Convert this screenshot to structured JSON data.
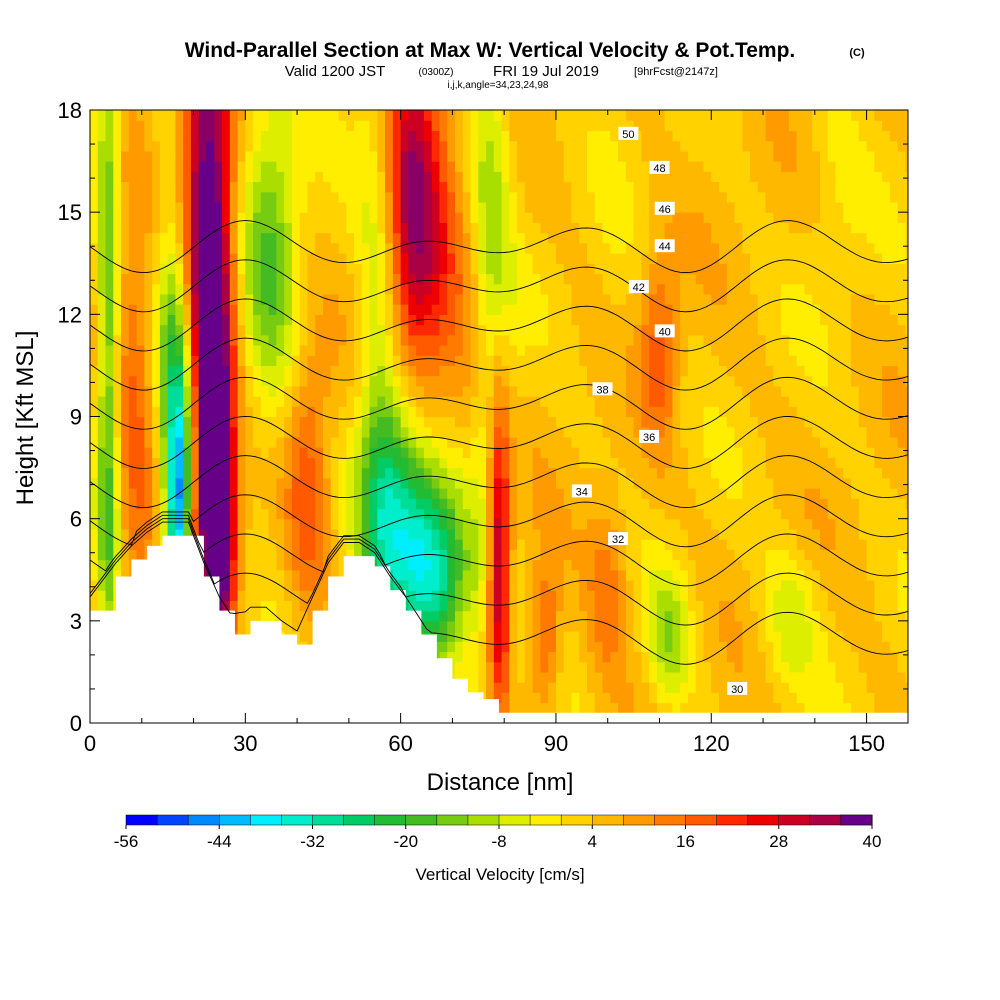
{
  "chart_data": {
    "type": "heatmap",
    "title": "Wind-Parallel Section at Max W: Vertical Velocity & Pot.Temp.",
    "title_mark": "(C)",
    "subtitle_main": "Valid 1200 JST",
    "subtitle_utc": "(0300Z)",
    "subtitle_date": "FRI 19 Jul 2019",
    "subtitle_fcst": "[9hrFcst@2147z]",
    "index_line": "i,j,k,angle=34,23,24,98",
    "xlabel": "Distance [nm]",
    "ylabel": "Height [Kft MSL]",
    "xlim": [
      0,
      158
    ],
    "ylim": [
      0,
      18
    ],
    "x_ticks": [
      0,
      30,
      60,
      90,
      120,
      150
    ],
    "y_ticks": [
      0,
      3,
      6,
      9,
      12,
      15,
      18
    ],
    "x_tick_labels": [
      "0",
      "30",
      "60",
      "90",
      "120",
      "150"
    ],
    "y_tick_labels": [
      "0",
      "3",
      "6",
      "9",
      "12",
      "15",
      "18"
    ],
    "colorbar": {
      "label": "Vertical Velocity [cm/s]",
      "tick_labels": [
        "-56",
        "-44",
        "-32",
        "-20",
        "-8",
        "4",
        "16",
        "28",
        "40"
      ],
      "levels": [
        -56,
        -52,
        -48,
        -44,
        -40,
        -36,
        -32,
        -28,
        -24,
        -20,
        -16,
        -12,
        -8,
        -4,
        0,
        4,
        8,
        12,
        16,
        20,
        24,
        28,
        32,
        36,
        40
      ],
      "colors": [
        "#0000ff",
        "#0044ff",
        "#0088ff",
        "#00bbff",
        "#00eeff",
        "#00eecc",
        "#00dd99",
        "#00cc66",
        "#22bb33",
        "#44bb22",
        "#77cc11",
        "#aadd00",
        "#ddee00",
        "#ffee00",
        "#ffd200",
        "#ffb800",
        "#ff9a00",
        "#ff7a00",
        "#ff5a00",
        "#ff2800",
        "#ee0000",
        "#cc0022",
        "#aa0044",
        "#880066",
        "#660088"
      ]
    },
    "terrain": [
      {
        "x": 0,
        "z": 3.3
      },
      {
        "x": 5,
        "z": 4.3
      },
      {
        "x": 8,
        "z": 4.8
      },
      {
        "x": 11,
        "z": 5.2
      },
      {
        "x": 14,
        "z": 5.5
      },
      {
        "x": 19,
        "z": 5.5
      },
      {
        "x": 22,
        "z": 4.3
      },
      {
        "x": 25,
        "z": 3.3
      },
      {
        "x": 28,
        "z": 2.6
      },
      {
        "x": 31,
        "z": 3.0
      },
      {
        "x": 34,
        "z": 3.0
      },
      {
        "x": 37,
        "z": 2.6
      },
      {
        "x": 40,
        "z": 2.3
      },
      {
        "x": 43,
        "z": 3.3
      },
      {
        "x": 46,
        "z": 4.3
      },
      {
        "x": 49,
        "z": 4.9
      },
      {
        "x": 52,
        "z": 4.9
      },
      {
        "x": 55,
        "z": 4.6
      },
      {
        "x": 58,
        "z": 3.9
      },
      {
        "x": 61,
        "z": 3.3
      },
      {
        "x": 64,
        "z": 2.6
      },
      {
        "x": 67,
        "z": 1.9
      },
      {
        "x": 70,
        "z": 1.3
      },
      {
        "x": 73,
        "z": 0.9
      },
      {
        "x": 76,
        "z": 0.7
      },
      {
        "x": 79,
        "z": 0.3
      },
      {
        "x": 158,
        "z": 0.3
      }
    ],
    "w_features": [
      {
        "x": 3.5,
        "z": 10,
        "w": -22,
        "sx": 1.5,
        "sz": 9
      },
      {
        "x": 17,
        "z": 6,
        "w": -40,
        "sx": 1.5,
        "sz": 2.5
      },
      {
        "x": 17,
        "z": 10,
        "w": -24,
        "sx": 2.5,
        "sz": 4
      },
      {
        "x": 14,
        "z": 14,
        "w": -6,
        "sx": 3,
        "sz": 4
      },
      {
        "x": 22,
        "z": 15,
        "w": 32,
        "sx": 3.5,
        "sz": 6
      },
      {
        "x": 24,
        "z": 9,
        "w": 36,
        "sx": 2.5,
        "sz": 5
      },
      {
        "x": 25,
        "z": 5.5,
        "w": 30,
        "sx": 2,
        "sz": 2
      },
      {
        "x": 9,
        "z": 9,
        "w": 14,
        "sx": 3,
        "sz": 5
      },
      {
        "x": 35,
        "z": 14,
        "w": -18,
        "sx": 4,
        "sz": 4
      },
      {
        "x": 42,
        "z": 7,
        "w": 14,
        "sx": 3,
        "sz": 3
      },
      {
        "x": 56,
        "z": 11,
        "w": -14,
        "sx": 3,
        "sz": 7
      },
      {
        "x": 62,
        "z": 16,
        "w": 26,
        "sx": 4,
        "sz": 4
      },
      {
        "x": 66,
        "z": 11,
        "w": 12,
        "sx": 5,
        "sz": 5
      },
      {
        "x": 67,
        "z": 4.5,
        "w": -38,
        "sx": 5,
        "sz": 2
      },
      {
        "x": 60,
        "z": 6.5,
        "w": -28,
        "sx": 5,
        "sz": 2.5
      },
      {
        "x": 77,
        "z": 12,
        "w": -20,
        "sx": 3,
        "sz": 8
      },
      {
        "x": 79,
        "z": 5,
        "w": 38,
        "sx": 1.6,
        "sz": 3.5
      },
      {
        "x": 75,
        "z": 10,
        "w": 12,
        "sx": 3,
        "sz": 4
      },
      {
        "x": 88,
        "z": 2.5,
        "w": 16,
        "sx": 2,
        "sz": 1.5
      },
      {
        "x": 100,
        "z": 4,
        "w": 12,
        "sx": 3,
        "sz": 2
      },
      {
        "x": 110,
        "z": 11,
        "w": 14,
        "sx": 2.5,
        "sz": 2
      },
      {
        "x": 112,
        "z": 2.5,
        "w": -14,
        "sx": 3,
        "sz": 1.5
      },
      {
        "x": 101,
        "z": 12,
        "w": -2,
        "sx": 3,
        "sz": 4
      },
      {
        "x": 135,
        "z": 3,
        "w": -10,
        "sx": 4,
        "sz": 1.5
      },
      {
        "x": 144,
        "z": 16,
        "w": -4,
        "sx": 4,
        "sz": 3
      }
    ],
    "theta_contours": [
      {
        "theta": 30,
        "label": "30",
        "lx": 125,
        "lz": 1.0
      },
      {
        "theta": 32,
        "label": "32",
        "lx": 102,
        "lz": 5.4
      },
      {
        "theta": 34,
        "label": "34",
        "lx": 95,
        "lz": 6.8
      },
      {
        "theta": 36,
        "label": "36",
        "lx": 108,
        "lz": 8.4
      },
      {
        "theta": 38,
        "label": "38",
        "lx": 99,
        "lz": 9.8
      },
      {
        "theta": 40,
        "label": "40",
        "lx": 111,
        "lz": 11.5
      },
      {
        "theta": 42,
        "label": "42",
        "lx": 106,
        "lz": 12.8
      },
      {
        "theta": 44,
        "label": "44",
        "lx": 111,
        "lz": 14.0
      },
      {
        "theta": 46,
        "label": "46",
        "lx": 111,
        "lz": 15.1
      },
      {
        "theta": 48,
        "label": "48",
        "lx": 110,
        "lz": 16.3
      },
      {
        "theta": 50,
        "label": "50",
        "lx": 104,
        "lz": 17.3
      }
    ]
  }
}
